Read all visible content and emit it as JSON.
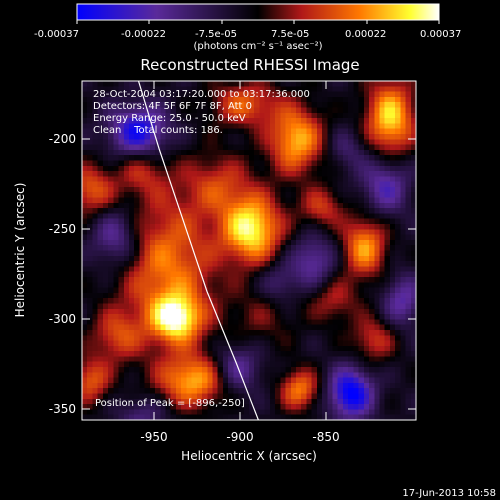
{
  "figure": {
    "title": "Reconstructed RHESSI Image",
    "xlabel": "Heliocentric X (arcsec)",
    "ylabel": "Heliocentric Y (arcsec)",
    "x_ticks": [
      "-950",
      "-900",
      "-850"
    ],
    "y_ticks": [
      "-200",
      "-250",
      "-300",
      "-350"
    ],
    "colorbar": {
      "ticks": [
        "-0.00037",
        "-0.00022",
        "-7.5e-05",
        "7.5e-05",
        "0.00022",
        "0.00037"
      ],
      "units": "(photons cm⁻² s⁻¹ asec⁻²)"
    },
    "info_lines": [
      "28-Oct-2004 03:17:20.000 to 03:17:36.000",
      "Detectors: 4F 5F 6F 7F 8F, Att 0",
      "Energy Range: 25.0 - 50.0 keV",
      "Clean    Total counts: 186."
    ],
    "peak_text": "Position of Peak = [-896,-250]",
    "date_stamp": "17-Jun-2013 10:58"
  },
  "chart_data": {
    "type": "heatmap",
    "title": "Reconstructed RHESSI Image",
    "xlabel": "Heliocentric X (arcsec)",
    "ylabel": "Heliocentric Y (arcsec)",
    "xlim": [
      -995,
      -800
    ],
    "ylim": [
      -357,
      -167
    ],
    "clim": [
      -0.00037,
      0.00037
    ],
    "colormap": [
      "#0000ff",
      "#5a2a9a",
      "#000000",
      "#b01818",
      "#ff7800",
      "#ffff30",
      "#ffffff"
    ],
    "peak": [
      -896,
      -250
    ],
    "blobs": [
      {
        "x": -945,
        "y": -272,
        "amp": 0.00024,
        "sx": 20,
        "sy": 30
      },
      {
        "x": -940,
        "y": -300,
        "amp": 0.00032,
        "sx": 10,
        "sy": 9
      },
      {
        "x": -896,
        "y": -250,
        "amp": 0.00037,
        "sx": 12,
        "sy": 13
      },
      {
        "x": -915,
        "y": -225,
        "amp": 0.00015,
        "sx": 14,
        "sy": 12
      },
      {
        "x": -870,
        "y": -200,
        "amp": 0.0003,
        "sx": 11,
        "sy": 13
      },
      {
        "x": -815,
        "y": -188,
        "amp": 0.00033,
        "sx": 10,
        "sy": 15
      },
      {
        "x": -900,
        "y": -180,
        "amp": 0.0002,
        "sx": 14,
        "sy": 9
      },
      {
        "x": -830,
        "y": -260,
        "amp": 0.00027,
        "sx": 9,
        "sy": 12
      },
      {
        "x": -855,
        "y": -238,
        "amp": 0.00016,
        "sx": 9,
        "sy": 8
      },
      {
        "x": -990,
        "y": -228,
        "amp": 0.0002,
        "sx": 10,
        "sy": 10
      },
      {
        "x": -960,
        "y": -218,
        "amp": 0.00012,
        "sx": 10,
        "sy": 9
      },
      {
        "x": -930,
        "y": -335,
        "amp": 0.00028,
        "sx": 14,
        "sy": 10
      },
      {
        "x": -975,
        "y": -310,
        "amp": 0.00016,
        "sx": 10,
        "sy": 10
      },
      {
        "x": -990,
        "y": -335,
        "amp": 0.0002,
        "sx": 8,
        "sy": 9
      },
      {
        "x": -868,
        "y": -340,
        "amp": 0.00024,
        "sx": 8,
        "sy": 8
      },
      {
        "x": -825,
        "y": -312,
        "amp": 0.00016,
        "sx": 9,
        "sy": 9
      },
      {
        "x": -848,
        "y": -290,
        "amp": 0.00013,
        "sx": 10,
        "sy": 9
      },
      {
        "x": -890,
        "y": -300,
        "amp": 8e-05,
        "sx": 14,
        "sy": 12
      },
      {
        "x": -962,
        "y": -195,
        "amp": -0.0003,
        "sx": 12,
        "sy": 10
      },
      {
        "x": -975,
        "y": -255,
        "amp": -0.0002,
        "sx": 10,
        "sy": 12
      },
      {
        "x": -838,
        "y": -342,
        "amp": -0.00034,
        "sx": 9,
        "sy": 10
      },
      {
        "x": -818,
        "y": -225,
        "amp": -0.0002,
        "sx": 10,
        "sy": 12
      },
      {
        "x": -860,
        "y": -268,
        "amp": -0.00018,
        "sx": 9,
        "sy": 10
      },
      {
        "x": -808,
        "y": -290,
        "amp": -0.00018,
        "sx": 8,
        "sy": 10
      },
      {
        "x": -905,
        "y": -328,
        "amp": -0.00018,
        "sx": 10,
        "sy": 10
      },
      {
        "x": -960,
        "y": -355,
        "amp": -0.00012,
        "sx": 10,
        "sy": 8
      },
      {
        "x": -840,
        "y": -205,
        "amp": -0.0001,
        "sx": 8,
        "sy": 8
      },
      {
        "x": -880,
        "y": -280,
        "amp": -0.00012,
        "sx": 8,
        "sy": 8
      }
    ],
    "limb_curve": [
      [
        -962,
        -167
      ],
      [
        -950,
        -205
      ],
      [
        -936,
        -245
      ],
      [
        -922,
        -285
      ],
      [
        -905,
        -325
      ],
      [
        -892,
        -357
      ]
    ]
  }
}
